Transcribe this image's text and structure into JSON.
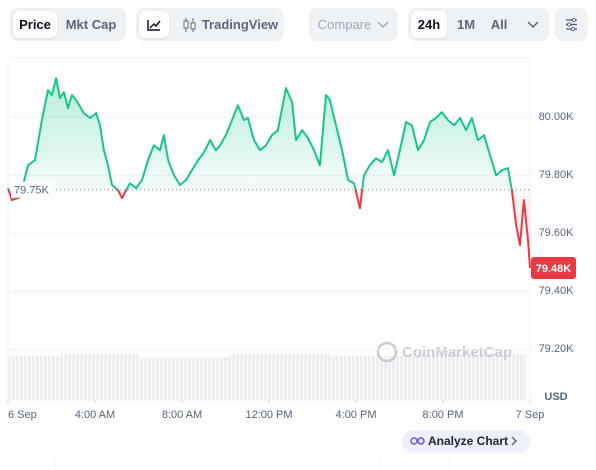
{
  "toolbar": {
    "price": "Price",
    "mkt_cap": "Mkt Cap",
    "trading_view": "TradingView",
    "compare": "Compare",
    "range_24h": "24h",
    "range_1m": "1M",
    "range_all": "All"
  },
  "chart_data": {
    "type": "line",
    "color_up": "#16c784",
    "color_down": "#ea3943",
    "grid": true,
    "x": [
      0,
      0.18,
      0.55,
      0.92,
      1.24,
      1.56,
      1.84,
      2.02,
      2.21,
      2.39,
      2.57,
      2.76,
      2.94,
      3.13,
      3.49,
      3.77,
      4.05,
      4.23,
      4.41,
      4.6,
      4.78,
      5.06,
      5.24,
      5.43,
      5.61,
      5.89,
      6.16,
      6.44,
      6.71,
      6.99,
      7.17,
      7.36,
      7.63,
      7.91,
      8.18,
      8.46,
      8.74,
      9.01,
      9.29,
      9.56,
      9.75,
      10.02,
      10.3,
      10.57,
      10.85,
      11.03,
      11.31,
      11.59,
      11.86,
      12.14,
      12.41,
      12.78,
      13.06,
      13.24,
      13.52,
      13.79,
      14.07,
      14.34,
      14.62,
      14.8,
      15.08,
      15.36,
      15.63,
      15.91,
      16.18,
      16.37,
      16.64,
      16.92,
      17.2,
      17.47,
      17.75,
      18.02,
      18.3,
      18.57,
      18.85,
      19.13,
      19.4,
      19.68,
      19.95,
      20.23,
      20.51,
      20.78,
      21.06,
      21.33,
      21.61,
      21.89,
      22.16,
      22.44,
      22.71,
      22.99,
      23.17,
      23.36,
      23.54,
      23.72,
      23.91,
      24
    ],
    "values": [
      79755,
      79714,
      79724,
      79834,
      79852,
      79990,
      80093,
      80076,
      80134,
      80066,
      80086,
      80031,
      80076,
      80059,
      80014,
      79997,
      80014,
      79972,
      79886,
      79834,
      79766,
      79748,
      79721,
      79748,
      79772,
      79755,
      79783,
      79852,
      79903,
      79886,
      79938,
      79852,
      79800,
      79766,
      79783,
      79817,
      79852,
      79879,
      79921,
      79886,
      79903,
      79938,
      79990,
      80041,
      79990,
      79997,
      79921,
      79886,
      79903,
      79938,
      79955,
      80100,
      80052,
      79921,
      79955,
      79928,
      79886,
      79834,
      80076,
      80059,
      79972,
      79886,
      79783,
      79772,
      79686,
      79800,
      79834,
      79858,
      79845,
      79886,
      79800,
      79886,
      79983,
      79972,
      79886,
      79921,
      79983,
      79997,
      80017,
      79990,
      79972,
      79997,
      79955,
      79997,
      79921,
      79938,
      79869,
      79800,
      79817,
      79824,
      79748,
      79628,
      79559,
      79714,
      79576,
      79480
    ],
    "xlim": [
      0,
      24
    ],
    "xticks": [
      {
        "value": 0,
        "label": "6 Sep"
      },
      {
        "value": 4,
        "label": "4:00 AM"
      },
      {
        "value": 8,
        "label": "8:00 AM"
      },
      {
        "value": 12,
        "label": "12:00 PM"
      },
      {
        "value": 16,
        "label": "4:00 PM"
      },
      {
        "value": 20,
        "label": "8:00 PM"
      },
      {
        "value": 24,
        "label": "7 Sep"
      }
    ],
    "ylim": [
      79025,
      80197
    ],
    "yticks": [
      {
        "value": 79200,
        "label": "79.20K"
      },
      {
        "value": 79400,
        "label": "79.40K"
      },
      {
        "value": 79600,
        "label": "79.60K"
      },
      {
        "value": 79800,
        "label": "79.80K"
      },
      {
        "value": 80000,
        "label": "80.00K"
      }
    ],
    "y_unit": "USD",
    "baseline": {
      "value": 79750,
      "label": "79.75K"
    },
    "current_price": {
      "value": 79480,
      "label": "79.48K"
    },
    "watermark": "CoinMarketCap"
  },
  "footer": {
    "analyze": "Analyze Chart"
  }
}
